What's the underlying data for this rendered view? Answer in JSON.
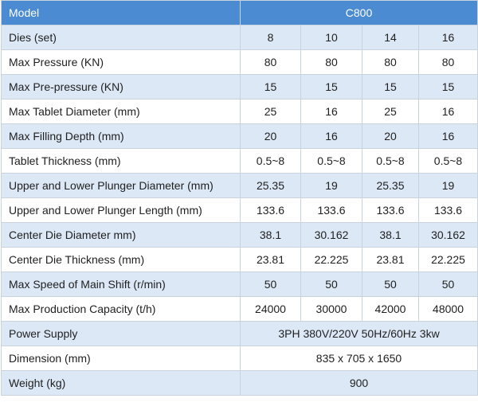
{
  "header": {
    "label": "Model",
    "model": "C800"
  },
  "rows": [
    {
      "label": "Dies (set)",
      "values": [
        "8",
        "10",
        "14",
        "16"
      ]
    },
    {
      "label": "Max Pressure (KN)",
      "values": [
        "80",
        "80",
        "80",
        "80"
      ]
    },
    {
      "label": "Max Pre-pressure (KN)",
      "values": [
        "15",
        "15",
        "15",
        "15"
      ]
    },
    {
      "label": "Max Tablet Diameter (mm)",
      "values": [
        "25",
        "16",
        "25",
        "16"
      ]
    },
    {
      "label": "Max Filling Depth (mm)",
      "values": [
        "20",
        "16",
        "20",
        "16"
      ]
    },
    {
      "label": "Tablet Thickness (mm)",
      "values": [
        "0.5~8",
        "0.5~8",
        "0.5~8",
        "0.5~8"
      ]
    },
    {
      "label": "Upper and Lower Plunger Diameter (mm)",
      "values": [
        "25.35",
        "19",
        "25.35",
        "19"
      ]
    },
    {
      "label": "Upper and Lower Plunger Length (mm)",
      "values": [
        "133.6",
        "133.6",
        "133.6",
        "133.6"
      ]
    },
    {
      "label": "Center Die Diameter mm)",
      "values": [
        "38.1",
        "30.162",
        "38.1",
        "30.162"
      ]
    },
    {
      "label": "Center Die Thickness (mm)",
      "values": [
        "23.81",
        "22.225",
        "23.81",
        "22.225"
      ]
    },
    {
      "label": "Max Speed of Main Shift (r/min)",
      "values": [
        "50",
        "50",
        "50",
        "50"
      ]
    },
    {
      "label": "Max Production Capacity (t/h)",
      "values": [
        "24000",
        "30000",
        "42000",
        "48000"
      ]
    }
  ],
  "merged_rows": [
    {
      "label": "Power Supply",
      "value": "3PH 380V/220V 50Hz/60Hz 3kw"
    },
    {
      "label": "Dimension (mm)",
      "value": "835 x 705 x 1650"
    },
    {
      "label": "Weight (kg)",
      "value": "900"
    }
  ]
}
